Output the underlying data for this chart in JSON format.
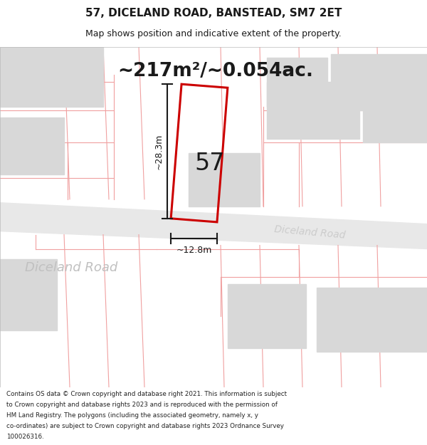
{
  "title": "57, DICELAND ROAD, BANSTEAD, SM7 2ET",
  "subtitle": "Map shows position and indicative extent of the property.",
  "area_text": "~217m²/~0.054ac.",
  "number_label": "57",
  "dim_width_label": "~12.8m",
  "dim_height_label": "~28.3m",
  "footer_lines": [
    "Contains OS data © Crown copyright and database right 2021. This information is subject",
    "to Crown copyright and database rights 2023 and is reproduced with the permission of",
    "HM Land Registry. The polygons (including the associated geometry, namely x, y",
    "co-ordinates) are subject to Crown copyright and database rights 2023 Ordnance Survey",
    "100026316."
  ],
  "bg_color": "#ffffff",
  "plot_line_color": "#cc0000",
  "dim_line_color": "#1a1a1a",
  "text_color": "#1a1a1a",
  "light_red_line": "#f0a0a0",
  "gray_block": "#d8d8d8",
  "road_color": "#e8e8e8"
}
